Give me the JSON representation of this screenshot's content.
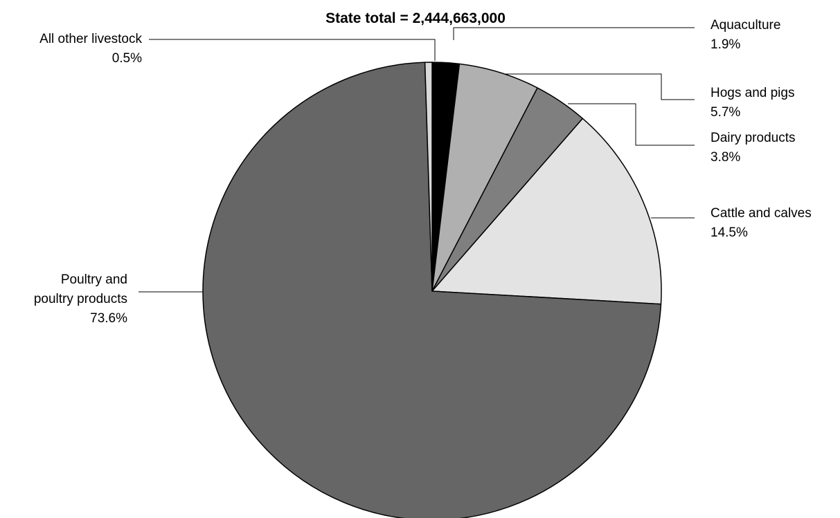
{
  "chart_data": {
    "type": "pie",
    "title": "State total = 2,444,663,000",
    "start": "12 o'clock",
    "direction": "clockwise",
    "slices": [
      {
        "key": "aquaculture",
        "label_lines": [
          "Aquaculture"
        ],
        "value": 1.9,
        "value_text": "1.9%",
        "color": "#000000"
      },
      {
        "key": "hogs-and-pigs",
        "label_lines": [
          "Hogs and pigs"
        ],
        "value": 5.7,
        "value_text": "5.7%",
        "color": "#b0b0b0"
      },
      {
        "key": "dairy-products",
        "label_lines": [
          "Dairy products"
        ],
        "value": 3.8,
        "value_text": "3.8%",
        "color": "#7f7f7f"
      },
      {
        "key": "cattle-and-calves",
        "label_lines": [
          "Cattle and calves"
        ],
        "value": 14.5,
        "value_text": "14.5%",
        "color": "#e3e3e3"
      },
      {
        "key": "poultry-and-poultry-products",
        "label_lines": [
          "Poultry and",
          "poultry products"
        ],
        "value": 73.6,
        "value_text": "73.6%",
        "color": "#666666"
      },
      {
        "key": "all-other-livestock",
        "label_lines": [
          "All other livestock"
        ],
        "value": 0.5,
        "value_text": "0.5%",
        "color": "#d9d9d9"
      }
    ]
  }
}
